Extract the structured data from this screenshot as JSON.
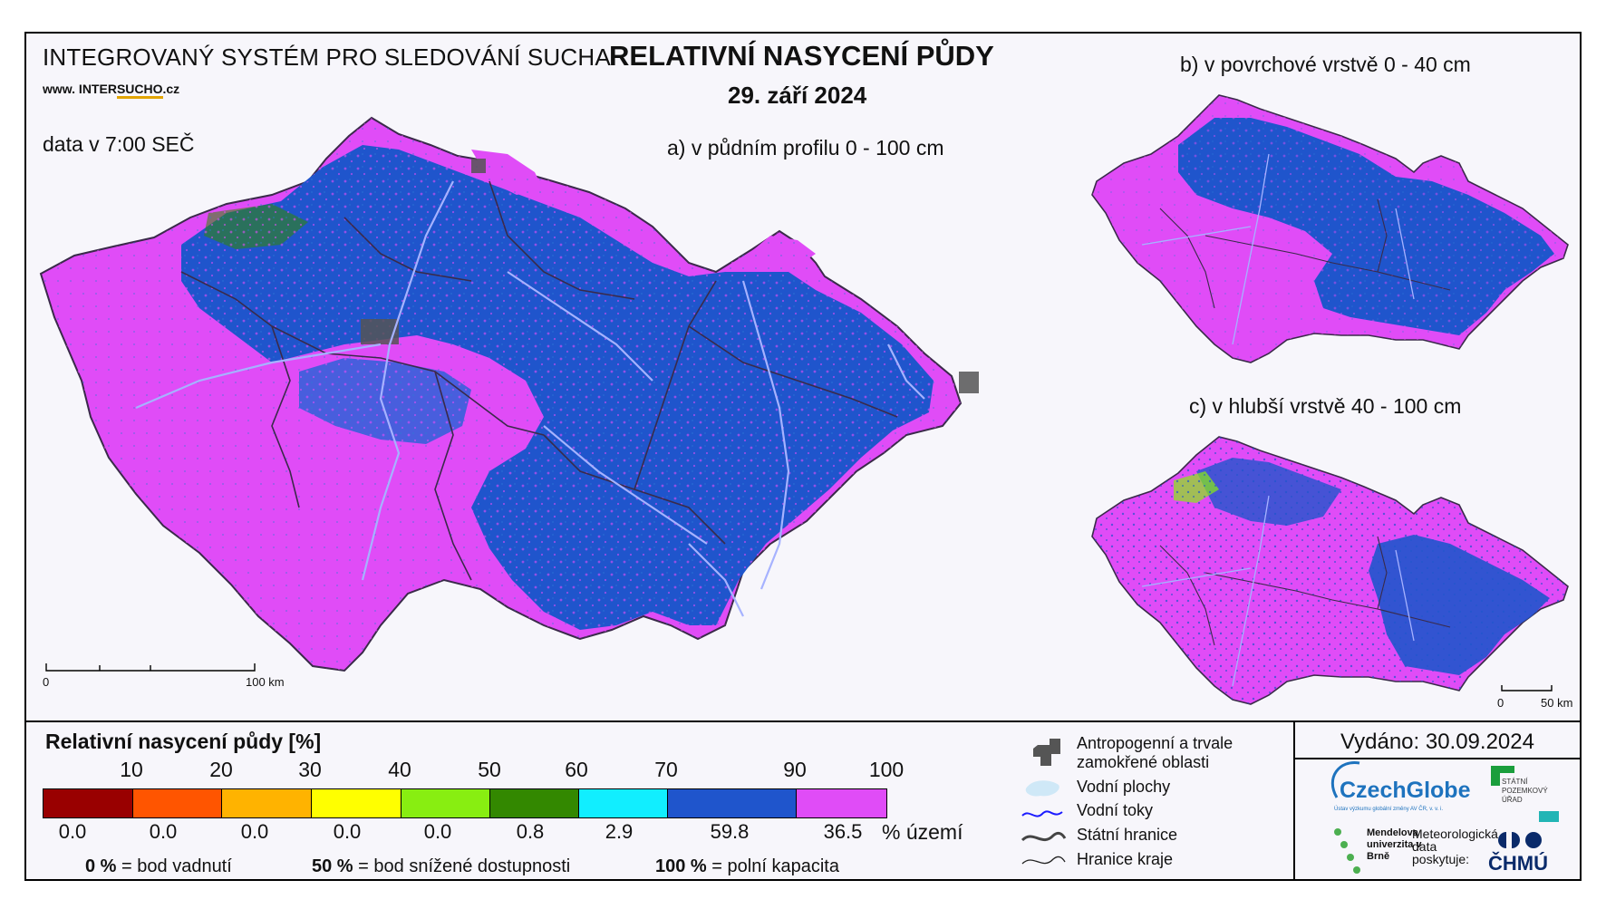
{
  "header": {
    "system_title": "INTEGROVANÝ SYSTÉM PRO SLEDOVÁNÍ SUCHA",
    "website_prefix": "www. INTER",
    "website_highlight": "SUCHO",
    "website_suffix": ".cz",
    "data_time": "data v 7:00 SEČ",
    "main_title": "RELATIVNÍ NASYCENÍ PŮDY",
    "date": "29. září 2024"
  },
  "maps": {
    "a_label": "a) v půdním profilu 0 - 100 cm",
    "b_label": "b) v povrchové vrstvě 0 - 40 cm",
    "c_label": "c) v hlubší vrstvě 40 - 100 cm",
    "scale_a": {
      "start": "0",
      "end": "100 km"
    },
    "scale_c": {
      "start": "0",
      "end": "50 km"
    }
  },
  "legend": {
    "title": "Relativní nasycení půdy [%]",
    "ticks": [
      "10",
      "20",
      "30",
      "40",
      "50",
      "60",
      "70",
      "90",
      "100"
    ],
    "classes": [
      {
        "color": "#990000",
        "pct": "0.0"
      },
      {
        "color": "#ff5500",
        "pct": "0.0"
      },
      {
        "color": "#ffb300",
        "pct": "0.0"
      },
      {
        "color": "#ffff00",
        "pct": "0.0"
      },
      {
        "color": "#88ee11",
        "pct": "0.0"
      },
      {
        "color": "#338800",
        "pct": "0.8"
      },
      {
        "color": "#11eeff",
        "pct": "2.9"
      },
      {
        "color": "#1f55cc",
        "pct": "59.8"
      },
      {
        "color": "#e04cf7",
        "pct": "36.5"
      }
    ],
    "pct_unit": "% území",
    "definitions": [
      {
        "value": "0 %",
        "text": "= bod vadnutí"
      },
      {
        "value": "50 %",
        "text": "= bod snížené dostupnosti"
      },
      {
        "value": "100 %",
        "text": "= polní kapacita"
      }
    ]
  },
  "map_legend": {
    "items": [
      "Antropogenní a trvale zamokřené oblasti",
      "Vodní plochy",
      "Vodní toky",
      "Státní hranice",
      "Hranice kraje"
    ]
  },
  "footer": {
    "issued": "Vydáno: 30.09.2024",
    "czechglobe": "CzechGlobe",
    "czechglobe_sub": "Ústav výzkumu globální změny AV ČR, v. v. i.",
    "spu": "STÁTNÍ POZEMKOVÝ ÚŘAD",
    "mendel": "Mendelova univerzita v Brně",
    "meteo": "Meteorologická data poskytuje:",
    "chmu": "ČHMÚ"
  },
  "colors": {
    "magenta": "#e04cf7",
    "blue": "#1f55cc",
    "border": "#4a3a5a",
    "river": "#9aa8ff"
  }
}
